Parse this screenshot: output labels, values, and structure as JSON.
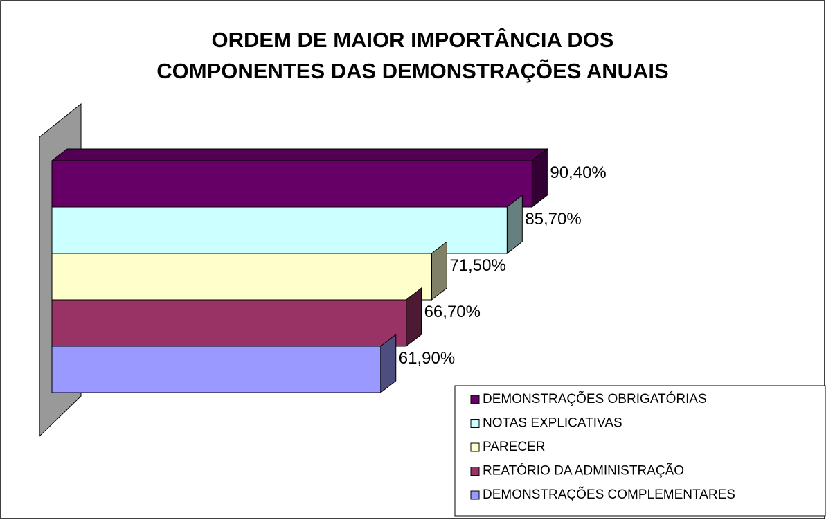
{
  "chart_data": {
    "type": "bar",
    "orientation": "horizontal",
    "three_d": true,
    "title": [
      "ORDEM DE MAIOR IMPORTÂNCIA DOS",
      "COMPONENTES DAS DEMONSTRAÇÕES ANUAIS"
    ],
    "xlim": [
      0,
      100
    ],
    "legend": "bottom-right",
    "series": [
      {
        "name": "DEMONSTRAÇÕES OBRIGATÓRIAS",
        "color": "#660066",
        "values": [
          90.4
        ],
        "value_labels": [
          "90,40%"
        ]
      },
      {
        "name": "NOTAS EXPLICATIVAS",
        "color": "#ccffff",
        "values": [
          85.7
        ],
        "value_labels": [
          "85,70%"
        ]
      },
      {
        "name": "PARECER",
        "color": "#ffffcc",
        "values": [
          71.5
        ],
        "value_labels": [
          "71,50%"
        ]
      },
      {
        "name": "REATÓRIO DA ADMINISTRAÇÃO",
        "color": "#993366",
        "values": [
          66.7
        ],
        "value_labels": [
          "66,70%"
        ]
      },
      {
        "name": "DEMONSTRAÇÕES COMPLEMENTARES",
        "color": "#9999ff",
        "values": [
          61.9
        ],
        "value_labels": [
          "61,90%"
        ]
      }
    ]
  }
}
